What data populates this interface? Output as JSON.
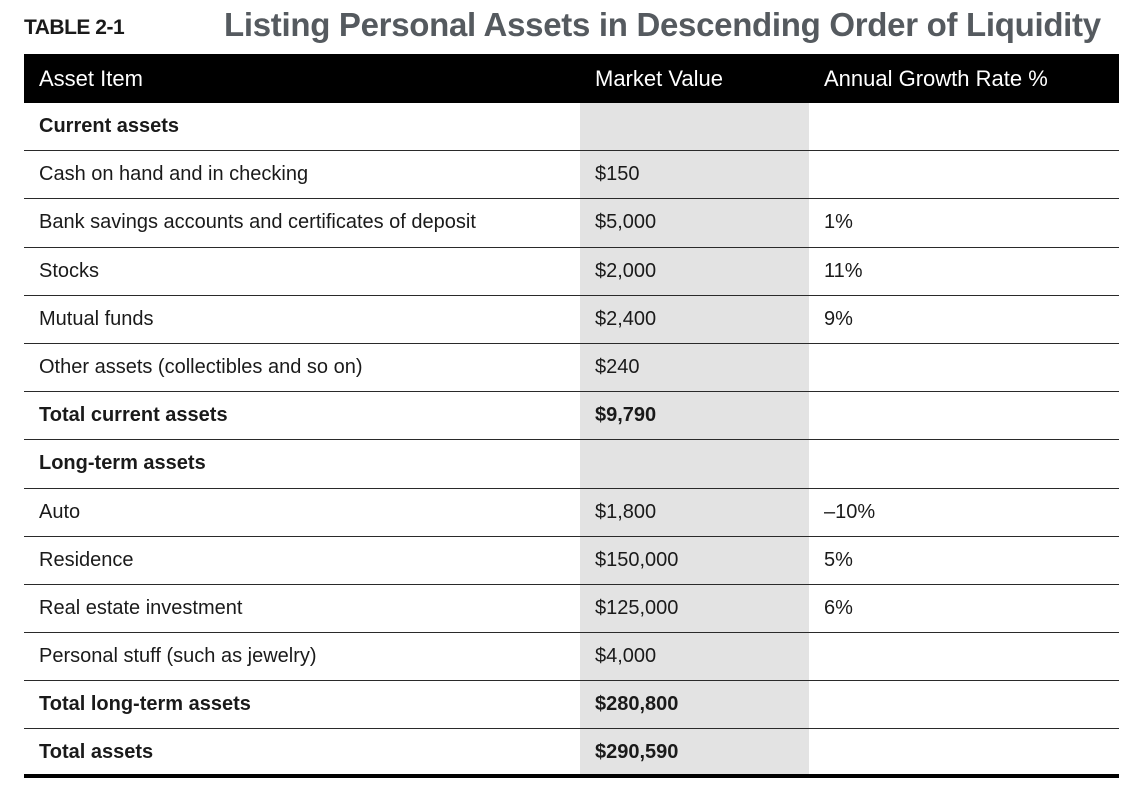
{
  "table_label": "TABLE 2-1",
  "title": "Listing Personal Assets in Descending Order of Liquidity",
  "columns": [
    "Asset Item",
    "Market Value",
    "Annual Growth Rate %"
  ],
  "rows": [
    {
      "item": "Current assets",
      "value": "",
      "growth": "",
      "bold": true
    },
    {
      "item": "Cash on hand and in checking",
      "value": "$150",
      "growth": "",
      "bold": false
    },
    {
      "item": "Bank savings accounts and certificates of deposit",
      "value": "$5,000",
      "growth": "1%",
      "bold": false
    },
    {
      "item": "Stocks",
      "value": "$2,000",
      "growth": "11%",
      "bold": false
    },
    {
      "item": "Mutual funds",
      "value": "$2,400",
      "growth": "9%",
      "bold": false
    },
    {
      "item": "Other assets (collectibles and so on)",
      "value": "$240",
      "growth": "",
      "bold": false
    },
    {
      "item": "Total current assets",
      "value": "$9,790",
      "growth": "",
      "bold": true
    },
    {
      "item": "Long-term assets",
      "value": "",
      "growth": "",
      "bold": true
    },
    {
      "item": "Auto",
      "value": "$1,800",
      "growth": "–10%",
      "bold": false
    },
    {
      "item": "Residence",
      "value": "$150,000",
      "growth": "5%",
      "bold": false
    },
    {
      "item": "Real estate investment",
      "value": "$125,000",
      "growth": "6%",
      "bold": false
    },
    {
      "item": "Personal stuff (such as jewelry)",
      "value": "$4,000",
      "growth": "",
      "bold": false
    },
    {
      "item": "Total long-term assets",
      "value": "$280,800",
      "growth": "",
      "bold": true
    },
    {
      "item": "Total assets",
      "value": "$290,590",
      "growth": "",
      "bold": true
    }
  ],
  "colors": {
    "header_bg": "#000000",
    "header_text": "#ffffff",
    "title": "#555a5f",
    "value_column_bg": "#e3e3e3"
  }
}
